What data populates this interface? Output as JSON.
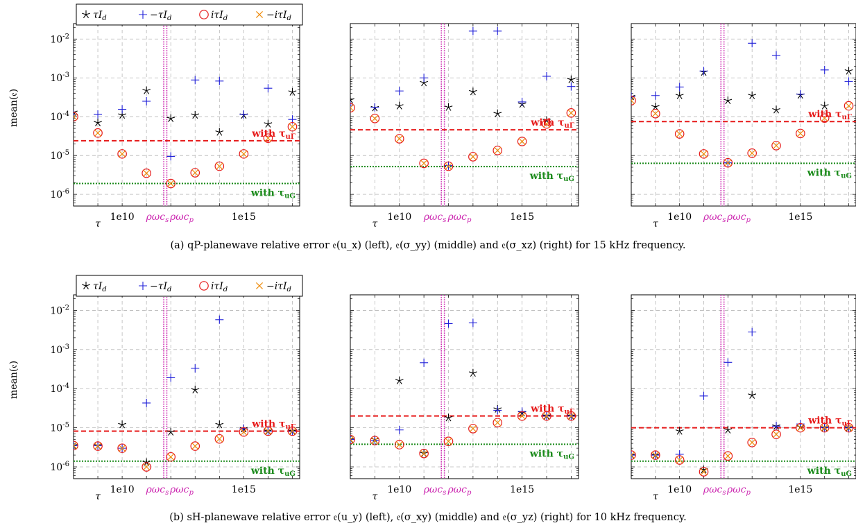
{
  "captions": {
    "a": "(a) qP-planewave relative error 𝔢(u_x) (left), 𝔢(σ_yy) (middle) and 𝔢(σ_xz) (right) for 15 kHz frequency.",
    "b": "(b) sH-planewave relative error 𝔢(u_y) (left), 𝔢(σ_xy) (middle) and 𝔢(σ_yz) (right) for 10 kHz frequency."
  },
  "legend": {
    "entries": [
      {
        "marker": "star",
        "label": "τI_d",
        "color": "#000000"
      },
      {
        "marker": "plus",
        "label": "−τI_d",
        "color": "#1f1fd8"
      },
      {
        "marker": "circle",
        "label": "iτI_d",
        "color": "#e61919"
      },
      {
        "marker": "cross",
        "label": "−iτI_d",
        "color": "#ee8c0c"
      }
    ]
  },
  "colors": {
    "star": "#000000",
    "plus": "#1f1fd8",
    "circle": "#e61919",
    "cross": "#ee8c0c",
    "uGamma": "#e61919",
    "uG": "#1a8a1a",
    "rho": "#cc27b0"
  },
  "axis_common": {
    "ylabel": "mean(𝔢)",
    "yscale": "log",
    "ylim": [
      5e-07,
      0.025
    ],
    "ytick_labels": [
      {
        "value": 0.01,
        "label": "10^-2"
      },
      {
        "value": 0.001,
        "label": "10^-3"
      },
      {
        "value": 0.0001,
        "label": "10^-4"
      },
      {
        "value": 1e-05,
        "label": "10^-5"
      },
      {
        "value": 1e-06,
        "label": "10^-6"
      }
    ],
    "xtick_labels": [
      {
        "label": "τ"
      },
      {
        "label": "1e10"
      },
      {
        "label": "ρωc_s"
      },
      {
        "label": "ρωc_p"
      },
      {
        "label": "1e15"
      }
    ],
    "ref_label_uGamma": "with τ_uΓ",
    "ref_label_uG": "with τ_uG"
  },
  "chart_data": [
    {
      "type": "scatter",
      "row": "a",
      "column": "left",
      "xscale": "log",
      "yscale": "log",
      "x": [
        100000000.0,
        1000000000.0,
        10000000000.0,
        100000000000.0,
        1000000000000.0,
        10000000000000.0,
        100000000000000.0,
        1000000000000000.0,
        1e+16,
        1e+17
      ],
      "series": [
        {
          "name": "τI_d",
          "marker": "star",
          "values": [
            0.00013,
            7e-05,
            0.00011,
            0.00047,
            9e-05,
            0.00011,
            4e-05,
            0.00011,
            6.5e-05,
            0.00043
          ]
        },
        {
          "name": "−τI_d",
          "marker": "plus",
          "values": [
            0.000115,
            0.000115,
            0.000155,
            0.00025,
            9.5e-06,
            0.00088,
            0.00083,
            0.000115,
            0.00054,
            8.5e-05
          ]
        },
        {
          "name": "iτI_d",
          "marker": "circle",
          "values": [
            0.0001,
            3.8e-05,
            1.1e-05,
            3.5e-06,
            1.9e-06,
            3.6e-06,
            5.3e-06,
            1.1e-05,
            2.8e-05,
            5.5e-05
          ]
        },
        {
          "name": "−iτI_d",
          "marker": "cross",
          "values": [
            0.0001,
            3.8e-05,
            1.1e-05,
            3.5e-06,
            1.9e-06,
            3.6e-06,
            5.3e-06,
            1.1e-05,
            2.8e-05,
            5.5e-05
          ]
        }
      ],
      "ref_uGamma": 2.4e-05,
      "ref_uG": 1.9e-06,
      "rho_cs": 400000000000.0,
      "rho_cp": 2500000000000.0,
      "show_legend": true,
      "show_ylabels": true
    },
    {
      "type": "scatter",
      "row": "a",
      "column": "middle",
      "xscale": "log",
      "yscale": "log",
      "x": [
        100000000.0,
        1000000000.0,
        10000000000.0,
        100000000000.0,
        1000000000000.0,
        10000000000000.0,
        100000000000000.0,
        1000000000000000.0,
        1e+16,
        1e+17
      ],
      "series": [
        {
          "name": "τI_d",
          "marker": "star",
          "values": [
            0.00027,
            0.00017,
            0.00019,
            0.00075,
            0.000175,
            0.00044,
            0.00012,
            0.00021,
            8e-05,
            0.0009
          ]
        },
        {
          "name": "−τI_d",
          "marker": "plus",
          "values": [
            0.0002,
            0.000175,
            0.00046,
            0.001,
            5.5e-06,
            0.016,
            0.016,
            0.00024,
            0.0011,
            0.0006
          ]
        },
        {
          "name": "iτI_d",
          "marker": "circle",
          "values": [
            0.00017,
            9e-05,
            2.7e-05,
            6.3e-06,
            5.3e-06,
            9.3e-06,
            1.35e-05,
            2.3e-05,
            6.5e-05,
            0.000125
          ]
        },
        {
          "name": "−iτI_d",
          "marker": "cross",
          "values": [
            0.00017,
            9e-05,
            2.7e-05,
            6.3e-06,
            5.3e-06,
            9.3e-06,
            1.35e-05,
            2.3e-05,
            6.5e-05,
            0.000125
          ]
        }
      ],
      "ref_uGamma": 4.6e-05,
      "ref_uG": 5.2e-06,
      "rho_cs": 400000000000.0,
      "rho_cp": 2500000000000.0,
      "show_legend": false,
      "show_ylabels": false
    },
    {
      "type": "scatter",
      "row": "a",
      "column": "right",
      "xscale": "log",
      "yscale": "log",
      "x": [
        100000000.0,
        1000000000.0,
        10000000000.0,
        100000000000.0,
        1000000000000.0,
        10000000000000.0,
        100000000000000.0,
        1000000000000000.0,
        1e+16,
        1e+17
      ],
      "series": [
        {
          "name": "τI_d",
          "marker": "star",
          "values": [
            0.00033,
            0.00018,
            0.00035,
            0.0014,
            0.00026,
            0.00035,
            0.00015,
            0.00036,
            0.00019,
            0.0015
          ]
        },
        {
          "name": "−τI_d",
          "marker": "plus",
          "values": [
            0.00033,
            0.00035,
            0.00058,
            0.0015,
            6.5e-06,
            0.0078,
            0.0038,
            0.00038,
            0.0016,
            0.00081
          ]
        },
        {
          "name": "iτI_d",
          "marker": "circle",
          "values": [
            0.00026,
            0.00012,
            3.6e-05,
            1.1e-05,
            6.5e-06,
            1.15e-05,
            1.8e-05,
            3.7e-05,
            9.2e-05,
            0.00019
          ]
        },
        {
          "name": "−iτI_d",
          "marker": "cross",
          "values": [
            0.00026,
            0.00012,
            3.6e-05,
            1.1e-05,
            6.5e-06,
            1.15e-05,
            1.8e-05,
            3.7e-05,
            9.2e-05,
            0.00019
          ]
        }
      ],
      "ref_uGamma": 7.5e-05,
      "ref_uG": 6.3e-06,
      "rho_cs": 400000000000.0,
      "rho_cp": 2500000000000.0,
      "show_legend": false,
      "show_ylabels": false
    },
    {
      "type": "scatter",
      "row": "b",
      "column": "left",
      "xscale": "log",
      "yscale": "log",
      "x": [
        100000000.0,
        1000000000.0,
        10000000000.0,
        100000000000.0,
        1000000000000.0,
        10000000000000.0,
        100000000000000.0,
        1000000000000000.0,
        1e+16,
        1e+17
      ],
      "series": [
        {
          "name": "τI_d",
          "marker": "star",
          "values": [
            3.5e-06,
            3.5e-06,
            1.2e-05,
            1.3e-06,
            7.8e-06,
            9.3e-05,
            1.2e-05,
            9.5e-06,
            8.2e-06,
            8.2e-06
          ]
        },
        {
          "name": "−τI_d",
          "marker": "plus",
          "values": [
            3.5e-06,
            3.5e-06,
            3e-06,
            4.3e-05,
            0.00019,
            0.00033,
            0.0058,
            9.5e-06,
            8.2e-06,
            8.2e-06
          ]
        },
        {
          "name": "iτI_d",
          "marker": "circle",
          "values": [
            3.5e-06,
            3.4e-06,
            3e-06,
            1e-06,
            1.8e-06,
            3.4e-06,
            5.2e-06,
            7.8e-06,
            8.2e-06,
            8.2e-06
          ]
        },
        {
          "name": "−iτI_d",
          "marker": "cross",
          "values": [
            3.5e-06,
            3.4e-06,
            3e-06,
            1e-06,
            1.8e-06,
            3.4e-06,
            5.2e-06,
            7.8e-06,
            8.2e-06,
            8.2e-06
          ]
        }
      ],
      "ref_uGamma": 8.2e-06,
      "ref_uG": 1.4e-06,
      "rho_cs": 400000000000.0,
      "rho_cp": 2500000000000.0,
      "show_legend": true,
      "show_ylabels": true
    },
    {
      "type": "scatter",
      "row": "b",
      "column": "middle",
      "xscale": "log",
      "yscale": "log",
      "x": [
        100000000.0,
        1000000000.0,
        10000000000.0,
        100000000000.0,
        1000000000000.0,
        10000000000000.0,
        100000000000000.0,
        1000000000000000.0,
        1e+16,
        1e+17
      ],
      "series": [
        {
          "name": "τI_d",
          "marker": "star",
          "values": [
            5e-06,
            5e-06,
            0.00016,
            2.2e-06,
            1.8e-05,
            0.00025,
            3e-05,
            2.4e-05,
            2e-05,
            2e-05
          ]
        },
        {
          "name": "−τI_d",
          "marker": "plus",
          "values": [
            5e-06,
            4.8e-06,
            8.8e-06,
            0.00046,
            0.0046,
            0.0048,
            2.8e-05,
            2.6e-05,
            2e-05,
            2e-05
          ]
        },
        {
          "name": "iτI_d",
          "marker": "circle",
          "values": [
            5e-06,
            4.7e-06,
            3.7e-06,
            2.2e-06,
            4.5e-06,
            9.5e-06,
            1.35e-05,
            2e-05,
            2e-05,
            2e-05
          ]
        },
        {
          "name": "−iτI_d",
          "marker": "cross",
          "values": [
            5e-06,
            4.7e-06,
            3.7e-06,
            2.2e-06,
            4.5e-06,
            9.5e-06,
            1.35e-05,
            2e-05,
            2e-05,
            2e-05
          ]
        }
      ],
      "ref_uGamma": 2e-05,
      "ref_uG": 3.8e-06,
      "rho_cs": 400000000000.0,
      "rho_cp": 2500000000000.0,
      "show_legend": false,
      "show_ylabels": false
    },
    {
      "type": "scatter",
      "row": "b",
      "column": "right",
      "xscale": "log",
      "yscale": "log",
      "x": [
        100000000.0,
        1000000000.0,
        10000000000.0,
        100000000000.0,
        1000000000000.0,
        10000000000000.0,
        100000000000000.0,
        1000000000000000.0,
        1e+16,
        1e+17
      ],
      "series": [
        {
          "name": "τI_d",
          "marker": "star",
          "values": [
            2e-06,
            2e-06,
            8.2e-06,
            8.5e-07,
            8.8e-06,
            6.8e-05,
            1.1e-05,
            1.05e-05,
            1e-05,
            1e-05
          ]
        },
        {
          "name": "−τI_d",
          "marker": "plus",
          "values": [
            2e-06,
            2e-06,
            2.1e-06,
            6.5e-05,
            0.00047,
            0.0028,
            1.1e-05,
            1.25e-05,
            1e-05,
            1e-05
          ]
        },
        {
          "name": "iτI_d",
          "marker": "circle",
          "values": [
            2e-06,
            2e-06,
            1.5e-06,
            7.5e-07,
            1.9e-06,
            4.2e-06,
            6.8e-06,
            1e-05,
            1e-05,
            1e-05
          ]
        },
        {
          "name": "−iτI_d",
          "marker": "cross",
          "values": [
            2e-06,
            2e-06,
            1.5e-06,
            7.5e-07,
            1.9e-06,
            4.2e-06,
            6.8e-06,
            1e-05,
            1e-05,
            1e-05
          ]
        }
      ],
      "ref_uGamma": 1e-05,
      "ref_uG": 1.4e-06,
      "rho_cs": 400000000000.0,
      "rho_cp": 2500000000000.0,
      "show_legend": false,
      "show_ylabels": false
    }
  ]
}
